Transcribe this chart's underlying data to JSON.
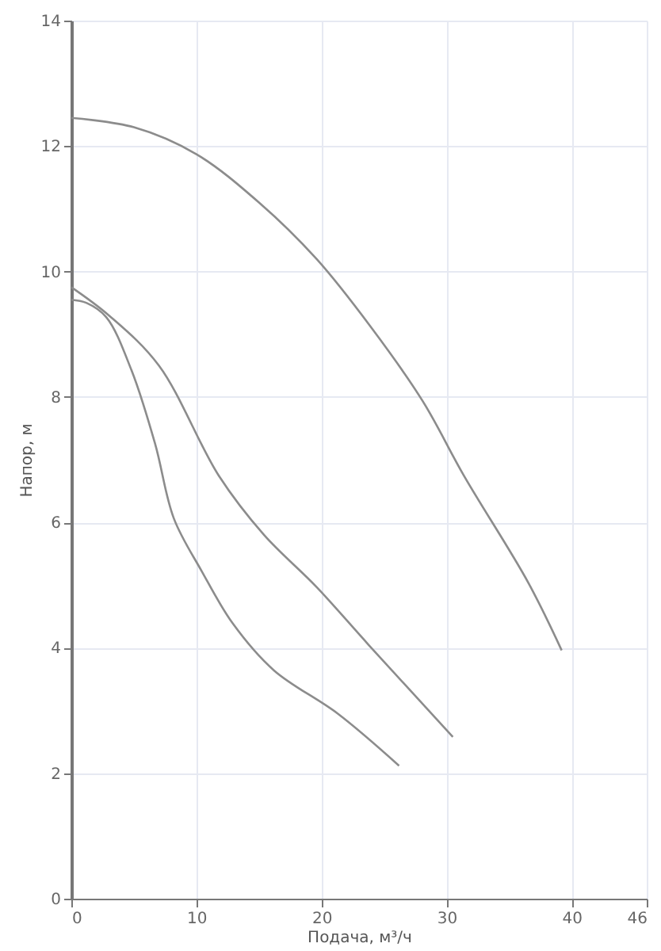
{
  "chart_data": {
    "type": "line",
    "xlabel": "Подача, м³/ч",
    "ylabel": "Напор, м",
    "xlim": [
      0,
      46
    ],
    "xticks": [
      0,
      10,
      20,
      30,
      40,
      46
    ],
    "ylim": [
      0,
      14
    ],
    "yticks": [
      0,
      2,
      4,
      6,
      8,
      10,
      12,
      14
    ],
    "grid": true,
    "marker": "none",
    "line_style": "solid",
    "series": [
      {
        "color": "#8c8c8c",
        "x": [
          0,
          5,
          10,
          15,
          19.6,
          24,
          28.1,
          31.4,
          36.5,
          39.2
        ],
        "values": [
          12.45,
          12.3,
          11.87,
          11.1,
          10.2,
          9.1,
          7.93,
          6.74,
          5.05,
          3.96
        ]
      },
      {
        "color": "#8c8c8c",
        "x": [
          0,
          3,
          7,
          11.8,
          15.4,
          19.6,
          23.8,
          30.5
        ],
        "values": [
          9.75,
          9.3,
          8.5,
          6.74,
          5.8,
          4.97,
          4.04,
          2.58
        ]
      },
      {
        "color": "#8c8c8c",
        "x": [
          0,
          1.2,
          2.8,
          4.8,
          6.7,
          8.2,
          10.4,
          12.9,
          16.2,
          21.3,
          26.2
        ],
        "values": [
          9.55,
          9.5,
          9.27,
          8.43,
          7.25,
          6.06,
          5.23,
          4.39,
          3.64,
          2.95,
          2.12
        ]
      }
    ]
  }
}
